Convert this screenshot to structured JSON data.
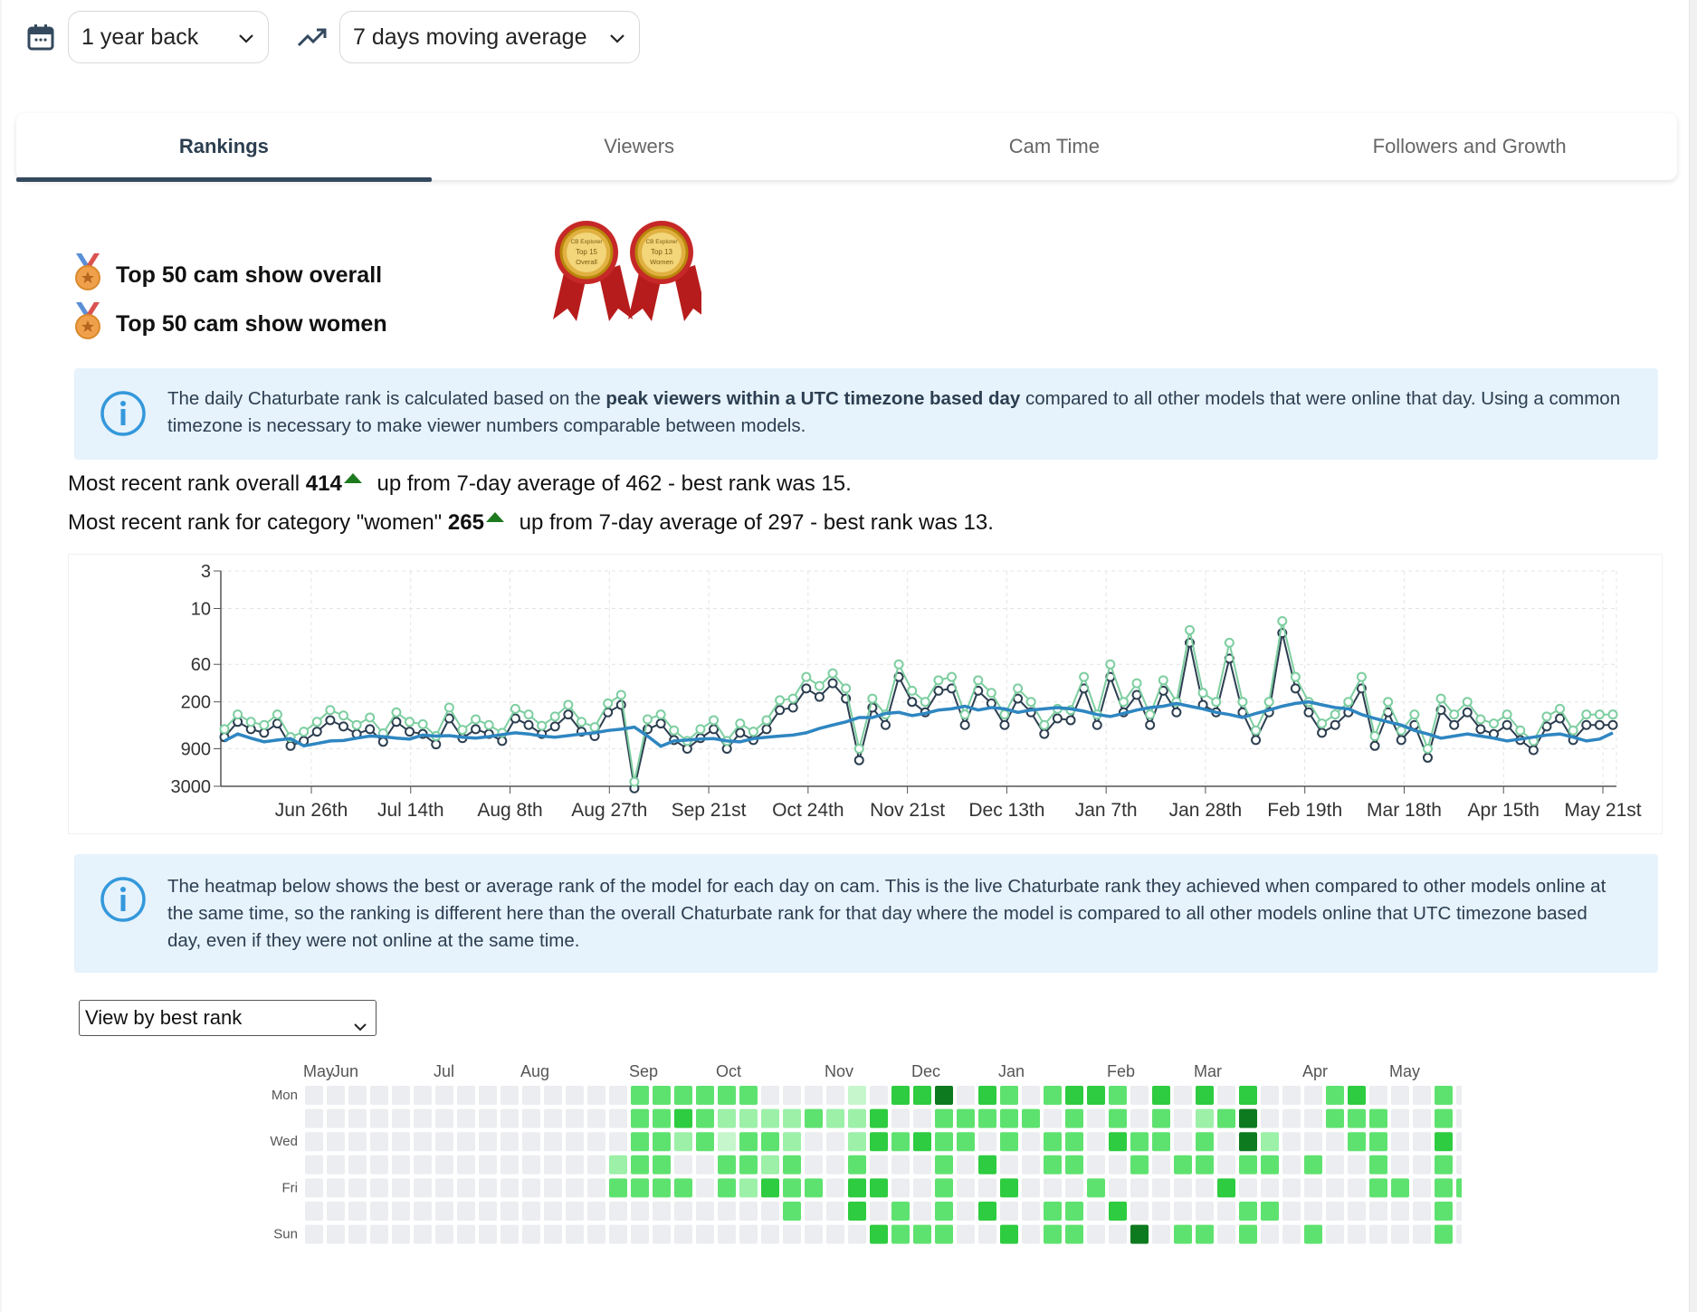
{
  "filters": {
    "period": "1 year back",
    "smoothing": "7 days moving average"
  },
  "tabs": [
    {
      "label": "Rankings",
      "active": true
    },
    {
      "label": "Viewers",
      "active": false
    },
    {
      "label": "Cam Time",
      "active": false
    },
    {
      "label": "Followers and Growth",
      "active": false
    }
  ],
  "awards": [
    {
      "label": "Top 50 cam show overall"
    },
    {
      "label": "Top 50 cam show women"
    }
  ],
  "badges": [
    {
      "line1": "CB Explorer",
      "line2": "Top 15",
      "line3": "Overall"
    },
    {
      "line1": "CB Explorer",
      "line2": "Top 13",
      "line3": "Women"
    }
  ],
  "info1": {
    "before": "The daily Chaturbate rank is calculated based on the ",
    "bold": "peak viewers within a UTC timezone based day",
    "after": " compared to all other models that were online that day. Using a common timezone is necessary to make viewer numbers comparable between models."
  },
  "rank_overall": {
    "prefix": "Most recent rank overall ",
    "value": "414",
    "suffix": " up from 7-day average of 462 - best rank was 15."
  },
  "rank_women": {
    "prefix": "Most recent rank for category \"women\" ",
    "value": "265",
    "suffix": " up from 7-day average of 297 - best rank was 13."
  },
  "chart_data": {
    "type": "line",
    "yscale": "log, inverted",
    "y_ticks": [
      "3",
      "10",
      "60",
      "200",
      "900",
      "3000"
    ],
    "x_ticks": [
      "Jun 26th",
      "Jul 14th",
      "Aug 8th",
      "Aug 27th",
      "Sep 21st",
      "Oct 24th",
      "Nov 21st",
      "Dec 13th",
      "Jan 7th",
      "Jan 28th",
      "Feb 19th",
      "Mar 18th",
      "Apr 15th",
      "May 21st"
    ],
    "ylim": [
      3000,
      3
    ],
    "grid": true,
    "series": [
      {
        "color": "#2e86c1",
        "values": [
          700,
          560,
          640,
          720,
          680,
          650,
          820,
          760,
          700,
          690,
          640,
          600,
          610,
          640,
          660,
          580,
          600,
          590,
          620,
          640,
          610,
          570,
          540,
          560,
          600,
          620,
          590,
          560,
          540,
          500,
          480,
          450,
          600,
          830,
          700,
          680,
          660,
          650,
          700,
          720,
          650,
          620,
          600,
          580,
          540,
          470,
          420,
          380,
          330,
          330,
          290,
          280,
          310,
          290,
          260,
          250,
          230,
          260,
          240,
          250,
          280,
          260,
          250,
          240,
          250,
          270,
          300,
          320,
          290,
          260,
          240,
          230,
          210,
          230,
          250,
          280,
          300,
          330,
          290,
          260,
          230,
          210,
          200,
          220,
          240,
          250,
          300,
          340,
          380,
          420,
          500,
          560,
          640,
          600,
          560,
          600,
          640,
          700,
          660,
          620,
          580,
          560,
          620,
          700,
          660,
          540
        ]
      },
      {
        "color": "#7dcea0",
        "values": [
          480,
          300,
          380,
          420,
          300,
          620,
          520,
          380,
          260,
          310,
          420,
          330,
          550,
          280,
          380,
          410,
          600,
          240,
          490,
          350,
          420,
          540,
          250,
          300,
          430,
          320,
          220,
          380,
          450,
          210,
          160,
          2600,
          350,
          300,
          500,
          700,
          480,
          360,
          700,
          400,
          520,
          360,
          190,
          180,
          90,
          120,
          80,
          130,
          900,
          180,
          300,
          60,
          140,
          200,
          100,
          90,
          300,
          100,
          150,
          300,
          130,
          200,
          420,
          250,
          260,
          90,
          300,
          60,
          200,
          110,
          300,
          100,
          200,
          20,
          150,
          200,
          30,
          200,
          500,
          200,
          15,
          90,
          200,
          400,
          300,
          200,
          90,
          600,
          200,
          500,
          300,
          900,
          180,
          300,
          200,
          350,
          400,
          300,
          500,
          700,
          320,
          250,
          500,
          300,
          300,
          300
        ]
      },
      {
        "color": "#2c3e50",
        "values": [
          620,
          380,
          480,
          540,
          400,
          820,
          700,
          520,
          360,
          440,
          560,
          480,
          720,
          380,
          520,
          560,
          780,
          340,
          640,
          480,
          560,
          700,
          340,
          420,
          560,
          440,
          300,
          520,
          600,
          280,
          220,
          3200,
          480,
          400,
          680,
          900,
          640,
          480,
          900,
          540,
          680,
          480,
          260,
          240,
          130,
          170,
          110,
          180,
          1300,
          240,
          420,
          90,
          200,
          280,
          140,
          130,
          420,
          140,
          210,
          420,
          180,
          280,
          560,
          340,
          360,
          130,
          420,
          90,
          280,
          160,
          420,
          140,
          280,
          30,
          220,
          280,
          50,
          280,
          680,
          280,
          22,
          130,
          280,
          540,
          420,
          280,
          130,
          820,
          280,
          680,
          420,
          1200,
          260,
          420,
          280,
          480,
          560,
          420,
          680,
          940,
          440,
          340,
          680,
          420,
          420,
          420
        ]
      }
    ]
  },
  "info2": {
    "text": "The heatmap below shows the best or average rank of the model for each day on cam. This is the live Chaturbate rank they achieved when compared to other models online at the same time, so the ranking is different here than the overall Chaturbate rank for that day where the model is compared to all other models online that UTC timezone based day, even if they were not online at the same time."
  },
  "heatmap": {
    "view_select": "View by best rank",
    "months": [
      "May",
      "Jun",
      "Jul",
      "Aug",
      "Sep",
      "Oct",
      "Nov",
      "Dec",
      "Jan",
      "Feb",
      "Mar",
      "Apr",
      "May"
    ],
    "day_labels": [
      "Mon",
      "Wed",
      "Fri",
      "Sun"
    ],
    "colors": [
      "#ebedf0",
      "#c6f6cc",
      "#9cf0a8",
      "#5ee26f",
      "#2ecc40",
      "#1faa31",
      "#0e7a1f"
    ],
    "weeks": [
      "0000000",
      "0000000",
      "0000000",
      "0000000",
      "0000000",
      "0000000",
      "0000000",
      "0000000",
      "0000000",
      "0000000",
      "0000000",
      "0000000",
      "0000000",
      "0000000",
      "0002300",
      "3333300",
      "3333300",
      "3420300",
      "3330000",
      "3213300",
      "3233200",
      "0232400",
      "0223330",
      "0300300",
      "0200000",
      "1223440",
      "0440404",
      "4030033",
      "4040003",
      "6333333",
      "0330000",
      "4304040",
      "3330404",
      "0300000",
      "3033033",
      "4333033",
      "4000300",
      "3340040",
      "0033006",
      "4330000",
      "0003003",
      "4233003",
      "0300400",
      "4663033",
      "0023030",
      "0000000",
      "0003003",
      "3300000",
      "4330000",
      "0333300",
      "0000300",
      "0000000",
      "3343333",
      "0000300",
      "3333300",
      "0000000",
      "3300300",
      "0303300",
      "3330003",
      "0300000",
      "0000000"
    ]
  }
}
